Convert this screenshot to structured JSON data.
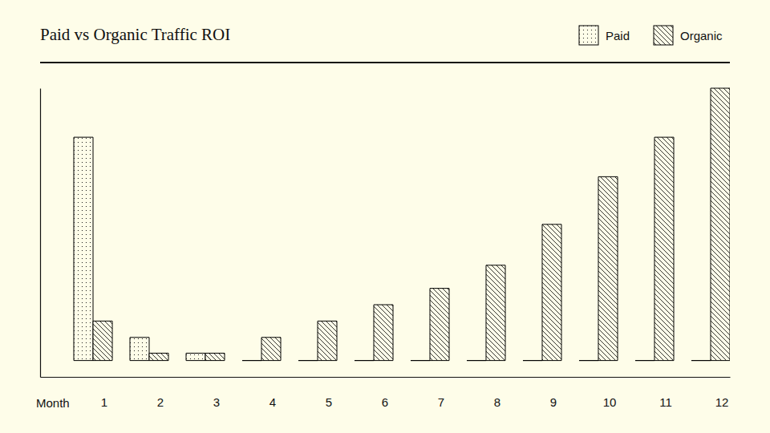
{
  "chart_data": {
    "type": "bar",
    "title": "Paid vs Organic Traffic ROI",
    "x_label": "Month",
    "categories": [
      "1",
      "2",
      "3",
      "4",
      "5",
      "6",
      "7",
      "8",
      "9",
      "10",
      "11",
      "12"
    ],
    "series": [
      {
        "name": "Paid",
        "color": "#000000",
        "values": [
          82,
          8.5,
          2.7,
          0,
          0,
          0,
          0,
          0,
          0,
          0,
          0,
          0
        ]
      },
      {
        "name": "Organic",
        "color": "#000000",
        "values": [
          14.5,
          2.7,
          2.7,
          8.5,
          14.5,
          20.5,
          26.5,
          35,
          50,
          67.5,
          82,
          100
        ]
      }
    ],
    "ylim": [
      -6,
      100
    ],
    "tick_labels": "x",
    "legend": "top-right"
  }
}
